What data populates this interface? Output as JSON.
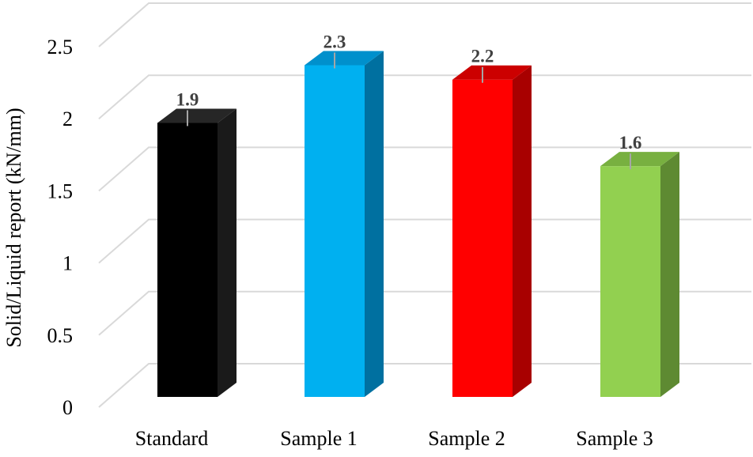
{
  "chart_data": {
    "type": "bar",
    "style": "3d-column",
    "title": "",
    "xlabel": "",
    "ylabel": "Solid/Liquid report (kN/mm)",
    "categories": [
      "Standard",
      "Sample 1",
      "Sample 2",
      "Sample 3"
    ],
    "values": [
      1.9,
      2.3,
      2.2,
      1.6
    ],
    "data_labels": [
      "1.9",
      "2.3",
      "2.2",
      "1.6"
    ],
    "ylim": [
      0,
      2.5
    ],
    "yticks": [
      "0",
      "0.5",
      "1",
      "1.5",
      "2",
      "2.5"
    ],
    "ytick_values": [
      0,
      0.5,
      1,
      1.5,
      2,
      2.5
    ],
    "grid": true,
    "legend": "none",
    "colors": [
      {
        "front": "#000000",
        "side": "#1a1a1a",
        "top": "#262626"
      },
      {
        "front": "#00b0f0",
        "side": "#0070a0",
        "top": "#0090cc"
      },
      {
        "front": "#ff0000",
        "side": "#a80000",
        "top": "#cc0000"
      },
      {
        "front": "#92d050",
        "side": "#5e8a32",
        "top": "#78b040"
      }
    ],
    "grid_color": "#d9d9d9",
    "error_bar_color": "#a6a6a6"
  }
}
